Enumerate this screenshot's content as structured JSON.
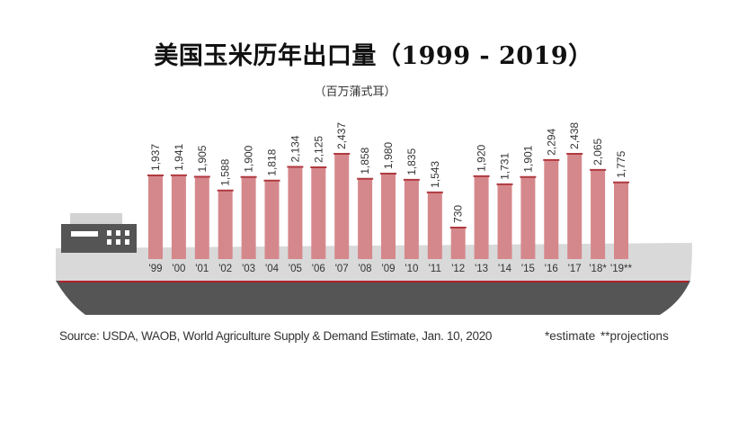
{
  "title": "美国玉米历年出口量（1999 - 2019）",
  "subtitle": "（百万蒲式耳）",
  "source": "Source: USDA, WAOB, World Agriculture Supply & Demand Estimate, Jan. 10, 2020",
  "footnote": "*estimate  **projections",
  "colors": {
    "bar_fill": "#d5888c",
    "bar_stroke": "#b03a40",
    "hull_gray": "#d9d9d9",
    "hull_dark": "#555555",
    "accent_red": "#b0202a"
  },
  "chart_data": {
    "type": "bar",
    "title": "美国玉米历年出口量（1999 - 2019）",
    "ylabel": "",
    "xlabel": "",
    "ylim": [
      0,
      2500
    ],
    "categories": [
      "'99",
      "'00",
      "'01",
      "'02",
      "'03",
      "'04",
      "'05",
      "'06",
      "'07",
      "'08",
      "'09",
      "'10",
      "'11",
      "'12",
      "'13",
      "'14",
      "'15",
      "'16",
      "'17",
      "'18*",
      "'19**"
    ],
    "values": [
      1937,
      1941,
      1905,
      1588,
      1900,
      1818,
      2134,
      2125,
      2437,
      1858,
      1980,
      1835,
      1543,
      730,
      1920,
      1731,
      1901,
      2294,
      2438,
      2065,
      1775
    ],
    "value_labels": [
      "1,937",
      "1,941",
      "1,905",
      "1,588",
      "1,900",
      "1,818",
      "2,134",
      "2,125",
      "2,437",
      "1,858",
      "1,980",
      "1,835",
      "1,543",
      "730",
      "1,920",
      "1,731",
      "1,901",
      "2,294",
      "2,438",
      "2,065",
      "1,775"
    ]
  }
}
